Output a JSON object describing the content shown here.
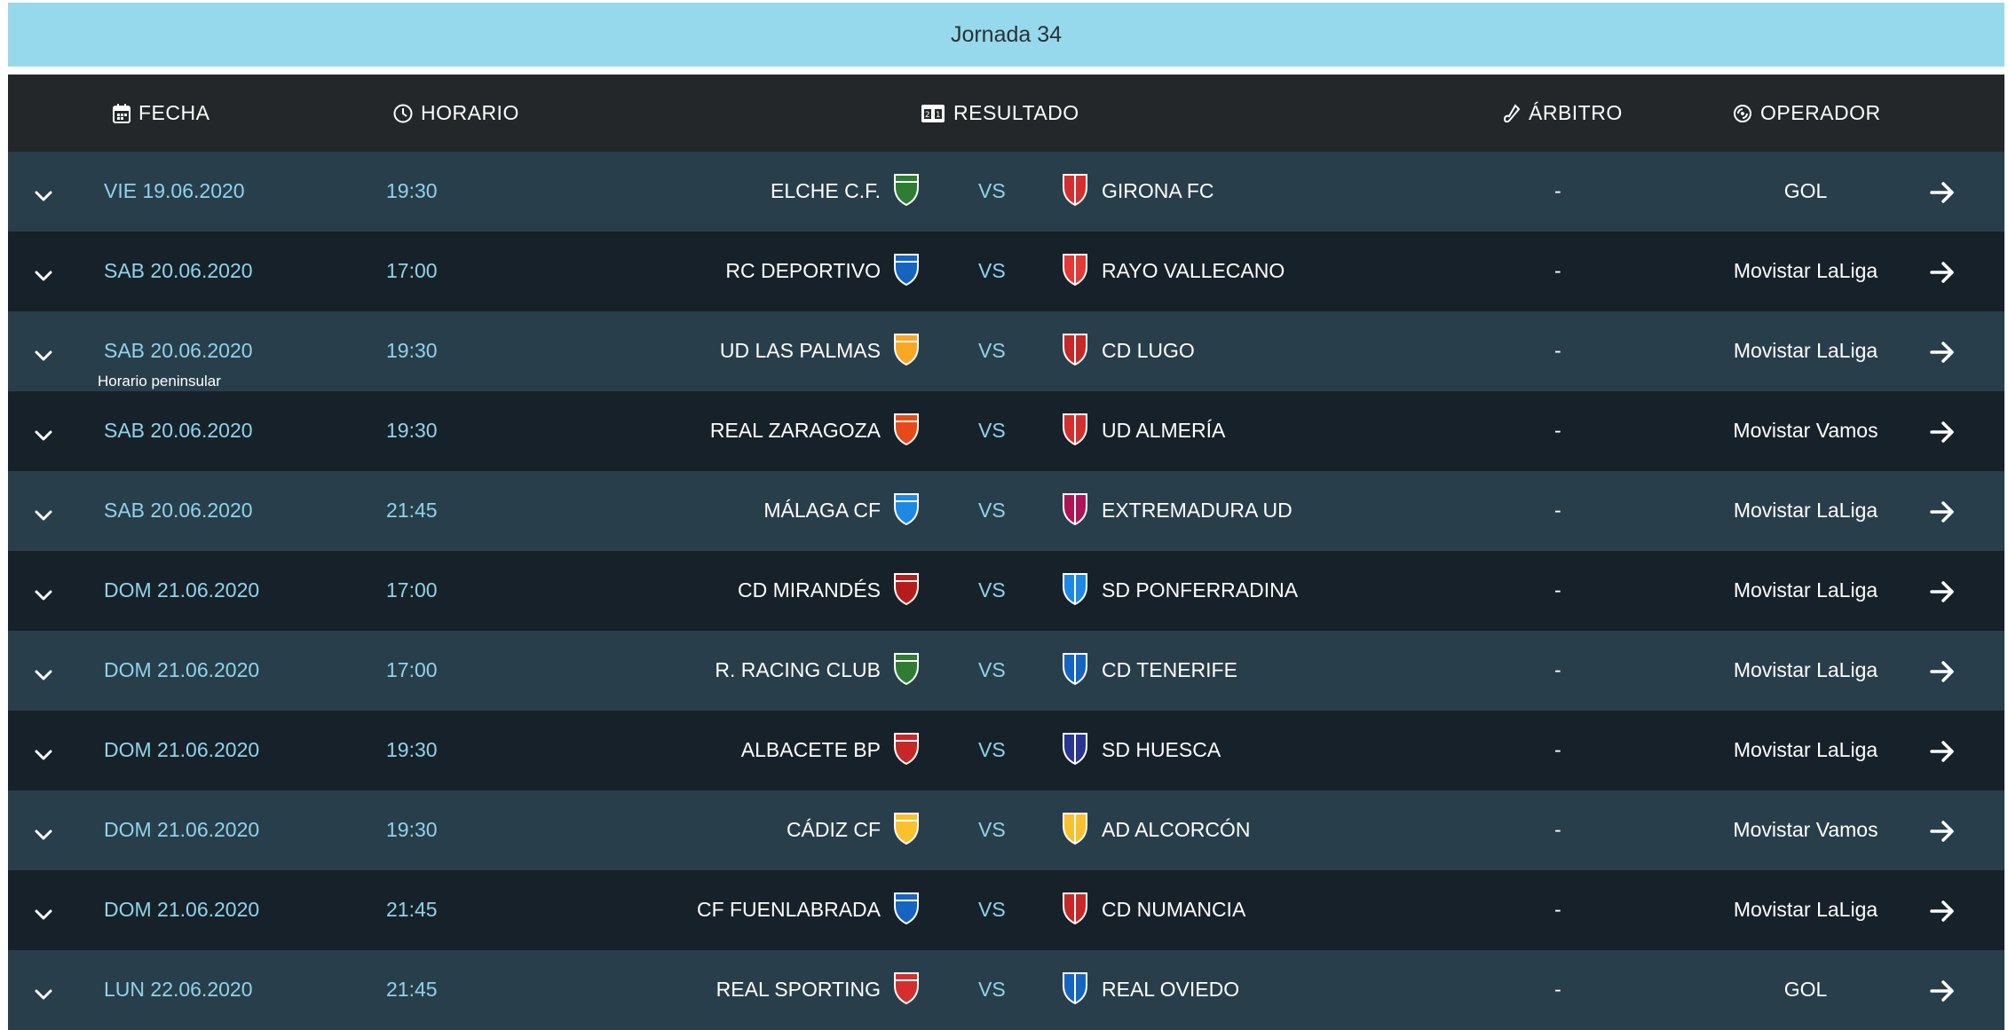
{
  "banner": {
    "title": "Jornada 34"
  },
  "header": {
    "fecha": "FECHA",
    "horario": "HORARIO",
    "resultado": "RESULTADO",
    "arbitro": "ÁRBITRO",
    "operador": "OPERADOR",
    "icons": [
      "calendar-icon",
      "clock-icon",
      "scoreboard-icon",
      "whistle-icon",
      "broadcast-icon"
    ]
  },
  "matches": [
    {
      "date": "VIE 19.06.2020",
      "time": "19:30",
      "home": "ELCHE C.F.",
      "vs": "VS",
      "away": "GIRONA FC",
      "referee": "-",
      "operator": "GOL",
      "home_color": "#2e7d32",
      "away_color": "#d32f2f"
    },
    {
      "date": "SAB 20.06.2020",
      "time": "17:00",
      "home": "RC DEPORTIVO",
      "vs": "VS",
      "away": "RAYO VALLECANO",
      "referee": "-",
      "operator": "Movistar LaLiga",
      "home_color": "#1565c0",
      "away_color": "#e53935"
    },
    {
      "date": "SAB 20.06.2020",
      "time": "19:30",
      "home": "UD LAS PALMAS",
      "vs": "VS",
      "away": "CD LUGO",
      "referee": "-",
      "operator": "Movistar LaLiga",
      "note": "Horario peninsular",
      "home_color": "#f9a825",
      "away_color": "#c62828"
    },
    {
      "date": "SAB 20.06.2020",
      "time": "19:30",
      "home": "REAL ZARAGOZA",
      "vs": "VS",
      "away": "UD ALMERÍA",
      "referee": "-",
      "operator": "Movistar Vamos",
      "home_color": "#e64a19",
      "away_color": "#d32f2f"
    },
    {
      "date": "SAB 20.06.2020",
      "time": "21:45",
      "home": "MÁLAGA CF",
      "vs": "VS",
      "away": "EXTREMADURA UD",
      "referee": "-",
      "operator": "Movistar LaLiga",
      "home_color": "#1e88e5",
      "away_color": "#ad1457"
    },
    {
      "date": "DOM 21.06.2020",
      "time": "17:00",
      "home": "CD MIRANDÉS",
      "vs": "VS",
      "away": "SD PONFERRADINA",
      "referee": "-",
      "operator": "Movistar LaLiga",
      "home_color": "#b71c1c",
      "away_color": "#1e88e5"
    },
    {
      "date": "DOM 21.06.2020",
      "time": "17:00",
      "home": "R. RACING CLUB",
      "vs": "VS",
      "away": "CD TENERIFE",
      "referee": "-",
      "operator": "Movistar LaLiga",
      "home_color": "#2e7d32",
      "away_color": "#1565c0"
    },
    {
      "date": "DOM 21.06.2020",
      "time": "19:30",
      "home": "ALBACETE BP",
      "vs": "VS",
      "away": "SD HUESCA",
      "referee": "-",
      "operator": "Movistar LaLiga",
      "home_color": "#c62828",
      "away_color": "#283593"
    },
    {
      "date": "DOM 21.06.2020",
      "time": "19:30",
      "home": "CÁDIZ CF",
      "vs": "VS",
      "away": "AD ALCORCÓN",
      "referee": "-",
      "operator": "Movistar Vamos",
      "home_color": "#fbc02d",
      "away_color": "#fbc02d"
    },
    {
      "date": "DOM 21.06.2020",
      "time": "21:45",
      "home": "CF FUENLABRADA",
      "vs": "VS",
      "away": "CD NUMANCIA",
      "referee": "-",
      "operator": "Movistar LaLiga",
      "home_color": "#1565c0",
      "away_color": "#c62828"
    },
    {
      "date": "LUN 22.06.2020",
      "time": "21:45",
      "home": "REAL SPORTING",
      "vs": "VS",
      "away": "REAL OVIEDO",
      "referee": "-",
      "operator": "GOL",
      "home_color": "#d32f2f",
      "away_color": "#1565c0"
    }
  ]
}
